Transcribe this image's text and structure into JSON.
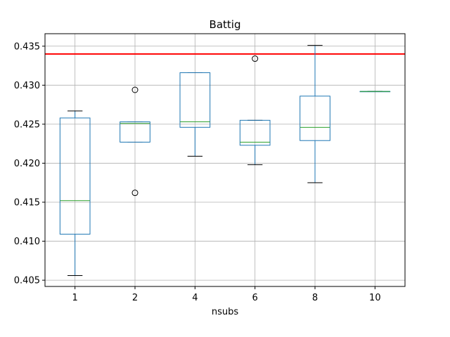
{
  "chart_data": {
    "type": "box",
    "title": "Battig",
    "xlabel": "nsubs",
    "ylabel": "",
    "categories": [
      "1",
      "2",
      "4",
      "6",
      "8",
      "10"
    ],
    "ylim": [
      0.4042,
      0.4366
    ],
    "yticks": [
      0.405,
      0.41,
      0.415,
      0.42,
      0.425,
      0.43,
      0.435
    ],
    "ytick_labels": [
      "0.405",
      "0.410",
      "0.415",
      "0.420",
      "0.425",
      "0.430",
      "0.435"
    ],
    "grid": true,
    "boxes": [
      {
        "category": "1",
        "whisker_low": 0.4056,
        "q1": 0.4109,
        "median": 0.4152,
        "q3": 0.4258,
        "whisker_high": 0.4267,
        "outliers": []
      },
      {
        "category": "2",
        "whisker_low": 0.4227,
        "q1": 0.4227,
        "median": 0.4251,
        "q3": 0.4253,
        "whisker_high": 0.4253,
        "outliers": [
          0.4162,
          0.4294
        ]
      },
      {
        "category": "4",
        "whisker_low": 0.4209,
        "q1": 0.4246,
        "median": 0.4253,
        "q3": 0.4316,
        "whisker_high": 0.4316,
        "outliers": []
      },
      {
        "category": "6",
        "whisker_low": 0.4198,
        "q1": 0.4223,
        "median": 0.4227,
        "q3": 0.4255,
        "whisker_high": 0.4255,
        "outliers": [
          0.4334
        ]
      },
      {
        "category": "8",
        "whisker_low": 0.4175,
        "q1": 0.4229,
        "median": 0.4246,
        "q3": 0.4286,
        "whisker_high": 0.4351,
        "outliers": []
      },
      {
        "category": "10",
        "whisker_low": 0.4292,
        "q1": 0.4292,
        "median": 0.4292,
        "q3": 0.4292,
        "whisker_high": 0.4292,
        "outliers": []
      }
    ],
    "reference_line": {
      "y": 0.434,
      "color": "#ff0000"
    },
    "colors": {
      "box": "#1f77b4",
      "median": "#2ca02c",
      "whisker_cap": "#000000",
      "grid": "#b0b0b0",
      "outlier": "#000000"
    }
  }
}
